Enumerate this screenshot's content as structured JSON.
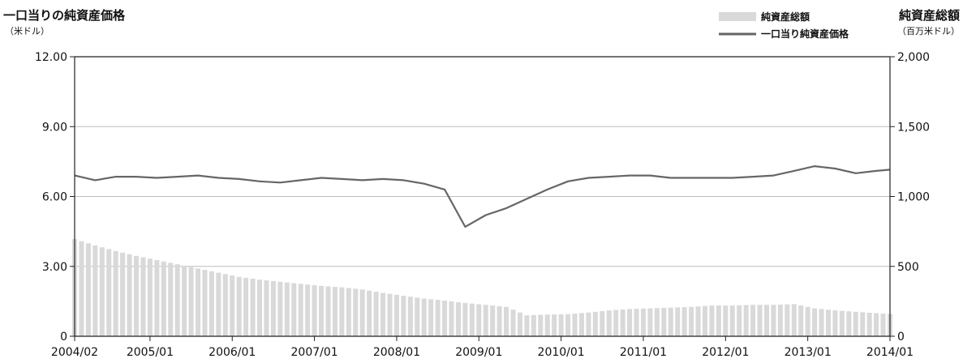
{
  "chart_data": {
    "type": "bar+line",
    "left_axis": {
      "title": "一口当りの純資産価格",
      "unit": "（米ドル）",
      "ylim": [
        0,
        12
      ],
      "ticks": [
        "12.00",
        "9.00",
        "6.00",
        "3.00",
        "0"
      ],
      "tick_values": [
        12,
        9,
        6,
        3,
        0
      ]
    },
    "right_axis": {
      "title": "純資産総額",
      "unit": "（百万米ドル）",
      "ylim": [
        0,
        2000
      ],
      "ticks": [
        "2,000",
        "1,500",
        "1,000",
        "500",
        "0"
      ],
      "tick_values": [
        2000,
        1500,
        1000,
        500,
        0
      ]
    },
    "x_axis": {
      "start": "2004/02",
      "end": "2014/01",
      "tick_labels": [
        "2004/02",
        "2005/01",
        "2006/01",
        "2007/01",
        "2008/01",
        "2009/01",
        "2010/01",
        "2011/01",
        "2012/01",
        "2013/01",
        "2014/01"
      ]
    },
    "legend": {
      "position": "top-right",
      "items": [
        {
          "name": "純資産総額",
          "kind": "bar",
          "color": "#d9d9d9"
        },
        {
          "name": "一口当り純資産価格",
          "kind": "line",
          "color": "#666666"
        }
      ]
    },
    "grid": {
      "horizontal": true,
      "vertical": false
    },
    "series": [
      {
        "name": "純資産総額",
        "axis": "right",
        "kind": "bar",
        "color": "#d9d9d9",
        "x": [
          "2004/02",
          "2004/05",
          "2004/08",
          "2004/11",
          "2005/02",
          "2005/05",
          "2005/08",
          "2005/11",
          "2006/02",
          "2006/05",
          "2006/08",
          "2006/11",
          "2007/02",
          "2007/05",
          "2007/08",
          "2007/11",
          "2008/02",
          "2008/05",
          "2008/08",
          "2008/11",
          "2009/02",
          "2009/05",
          "2009/08",
          "2009/11",
          "2010/02",
          "2010/05",
          "2010/08",
          "2010/11",
          "2011/02",
          "2011/05",
          "2011/08",
          "2011/11",
          "2012/02",
          "2012/05",
          "2012/08",
          "2012/11",
          "2013/02",
          "2013/05",
          "2013/08",
          "2013/11",
          "2014/01"
        ],
        "values": [
          695,
          650,
          610,
          575,
          545,
          515,
          485,
          455,
          425,
          405,
          390,
          375,
          360,
          350,
          335,
          310,
          290,
          270,
          255,
          238,
          225,
          210,
          150,
          155,
          158,
          170,
          185,
          195,
          200,
          205,
          210,
          220,
          220,
          225,
          225,
          230,
          200,
          185,
          175,
          165,
          160
        ]
      },
      {
        "name": "一口当り純資産価格",
        "axis": "left",
        "kind": "line",
        "color": "#666666",
        "x": [
          "2004/02",
          "2004/05",
          "2004/08",
          "2004/11",
          "2005/02",
          "2005/05",
          "2005/08",
          "2005/11",
          "2006/02",
          "2006/05",
          "2006/08",
          "2006/11",
          "2007/02",
          "2007/05",
          "2007/08",
          "2007/11",
          "2008/02",
          "2008/05",
          "2008/08",
          "2008/11",
          "2009/02",
          "2009/05",
          "2009/08",
          "2009/11",
          "2010/02",
          "2010/05",
          "2010/08",
          "2010/11",
          "2011/02",
          "2011/05",
          "2011/08",
          "2011/11",
          "2012/02",
          "2012/05",
          "2012/08",
          "2012/11",
          "2013/02",
          "2013/05",
          "2013/08",
          "2013/11",
          "2014/01"
        ],
        "values": [
          6.9,
          6.7,
          6.85,
          6.85,
          6.8,
          6.85,
          6.9,
          6.8,
          6.75,
          6.65,
          6.6,
          6.7,
          6.8,
          6.75,
          6.7,
          6.75,
          6.7,
          6.55,
          6.3,
          4.7,
          5.2,
          5.5,
          5.9,
          6.3,
          6.65,
          6.8,
          6.85,
          6.9,
          6.9,
          6.8,
          6.8,
          6.8,
          6.8,
          6.85,
          6.9,
          7.1,
          7.3,
          7.2,
          7.0,
          7.1,
          7.15
        ]
      }
    ]
  }
}
